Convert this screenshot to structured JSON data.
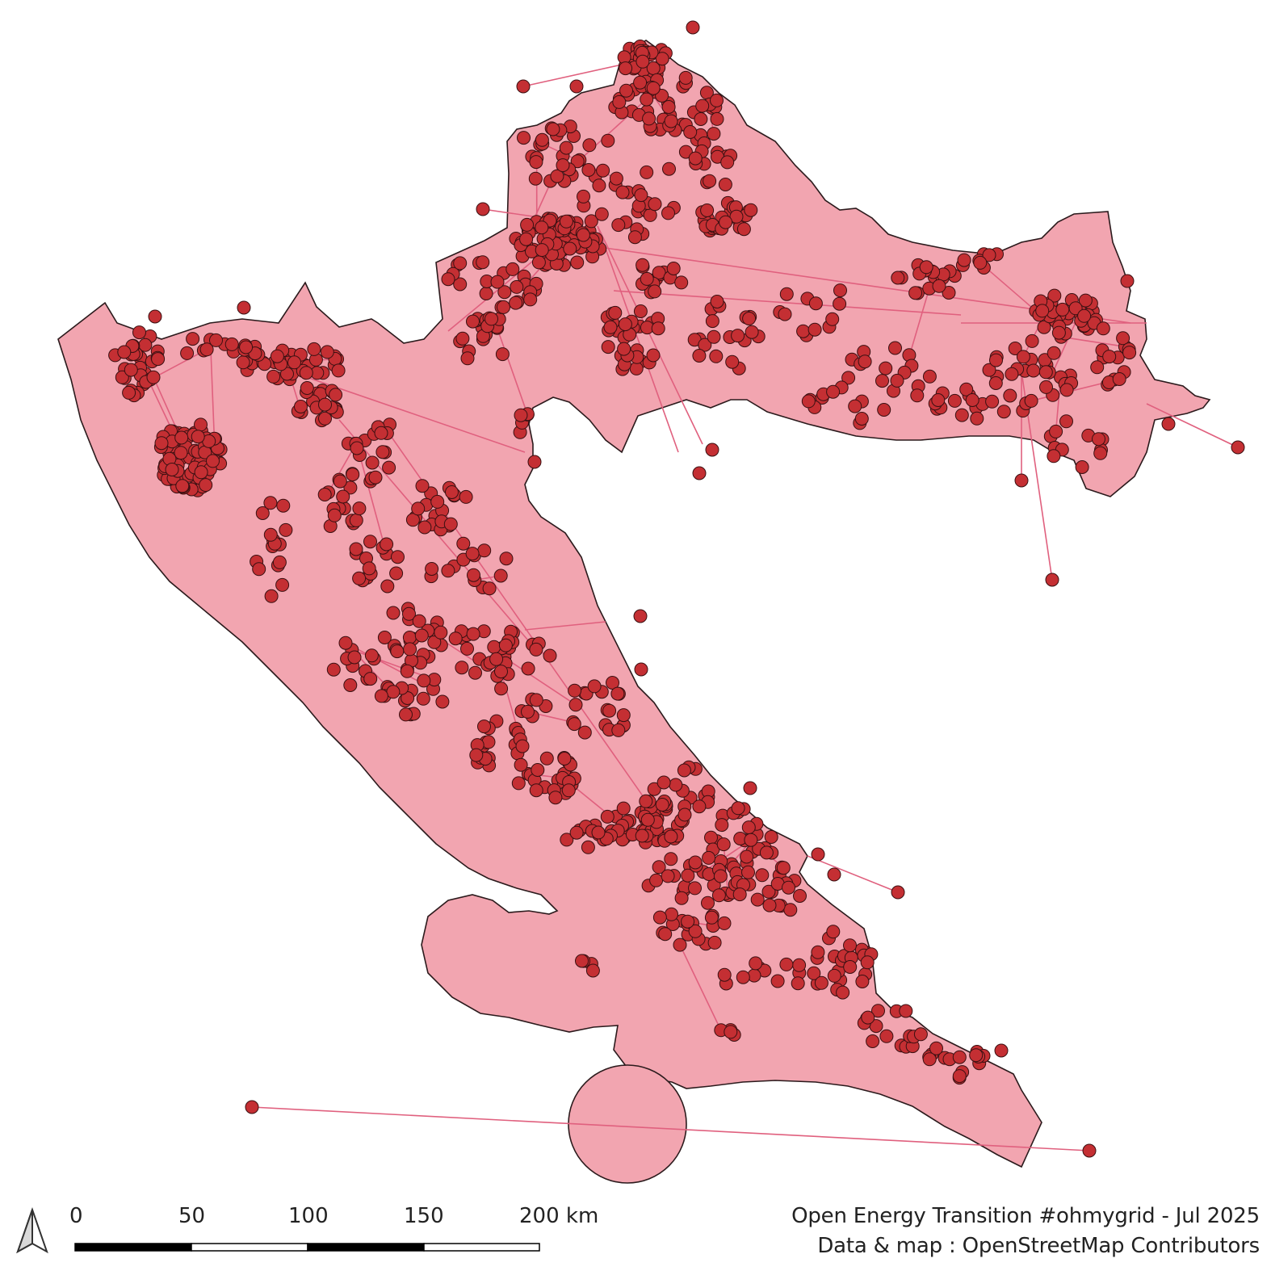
{
  "map": {
    "colors": {
      "region_fill": "#f2a5b0",
      "region_stroke": "#2b1a1c",
      "line": "#e0607e",
      "substation_fill": "#c42f33",
      "substation_stroke": "#3a1012"
    }
  },
  "north_arrow": {
    "icon": "north-arrow-icon"
  },
  "scale_bar": {
    "ticks": [
      "0",
      "50",
      "100",
      "150",
      "200 km"
    ]
  },
  "credits": {
    "line1": "Open Energy Transition #ohmygrid - Jul 2025",
    "line2": "Data & map : OpenStreetMap Contributors"
  }
}
